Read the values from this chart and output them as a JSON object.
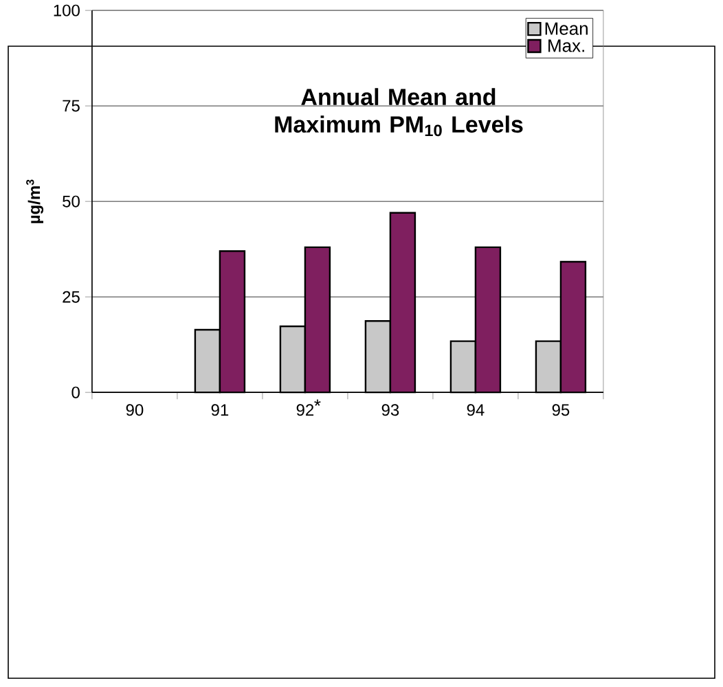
{
  "chart_data": {
    "type": "bar",
    "title": "Annual Mean and Maximum PM$_{10}$ Levels",
    "ylabel": "µg/m$^{3}$",
    "categories": [
      "90",
      "91",
      "92",
      "93",
      "94",
      "95"
    ],
    "series": [
      {
        "name": "Mean",
        "color": "#c8c8c8",
        "values": [
          null,
          16.4,
          17.3,
          18.7,
          13.4,
          13.4
        ]
      },
      {
        "name": "Max.",
        "color": "#7f1f5f",
        "values": [
          null,
          37,
          38,
          47,
          38,
          34.2
        ]
      }
    ],
    "ylim": [
      0,
      100
    ],
    "yticks": [
      0,
      25,
      50,
      75,
      100
    ],
    "grid": "y",
    "legend": "top right",
    "annotations": [
      {
        "text": "*",
        "x": "92",
        "y": 0
      }
    ]
  }
}
